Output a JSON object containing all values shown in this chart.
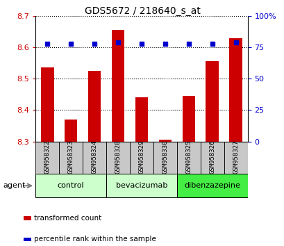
{
  "title": "GDS5672 / 218640_s_at",
  "samples": [
    "GSM958322",
    "GSM958323",
    "GSM958324",
    "GSM958328",
    "GSM958329",
    "GSM958330",
    "GSM958325",
    "GSM958326",
    "GSM958327"
  ],
  "bar_values": [
    8.535,
    8.37,
    8.525,
    8.655,
    8.44,
    8.305,
    8.445,
    8.555,
    8.63
  ],
  "percentile_values": [
    78,
    78,
    78,
    79,
    78,
    78,
    78,
    78,
    79
  ],
  "ymin": 8.3,
  "ymax": 8.7,
  "yticks": [
    8.3,
    8.4,
    8.5,
    8.6,
    8.7
  ],
  "right_yticks": [
    0,
    25,
    50,
    75,
    100
  ],
  "bar_color": "#cc0000",
  "dot_color": "#0000cc",
  "groups": [
    {
      "label": "control",
      "start": 0,
      "end": 3,
      "color": "#ccffcc"
    },
    {
      "label": "bevacizumab",
      "start": 3,
      "end": 6,
      "color": "#ccffcc"
    },
    {
      "label": "dibenzazepine",
      "start": 6,
      "end": 9,
      "color": "#44ee44"
    }
  ],
  "agent_label": "agent",
  "sample_box_color": "#c8c8c8",
  "tick_label_color_left": "#cc0000",
  "tick_label_color_right": "#0000cc",
  "legend_items": [
    {
      "label": "transformed count",
      "color": "#cc0000"
    },
    {
      "label": "percentile rank within the sample",
      "color": "#0000cc"
    }
  ]
}
